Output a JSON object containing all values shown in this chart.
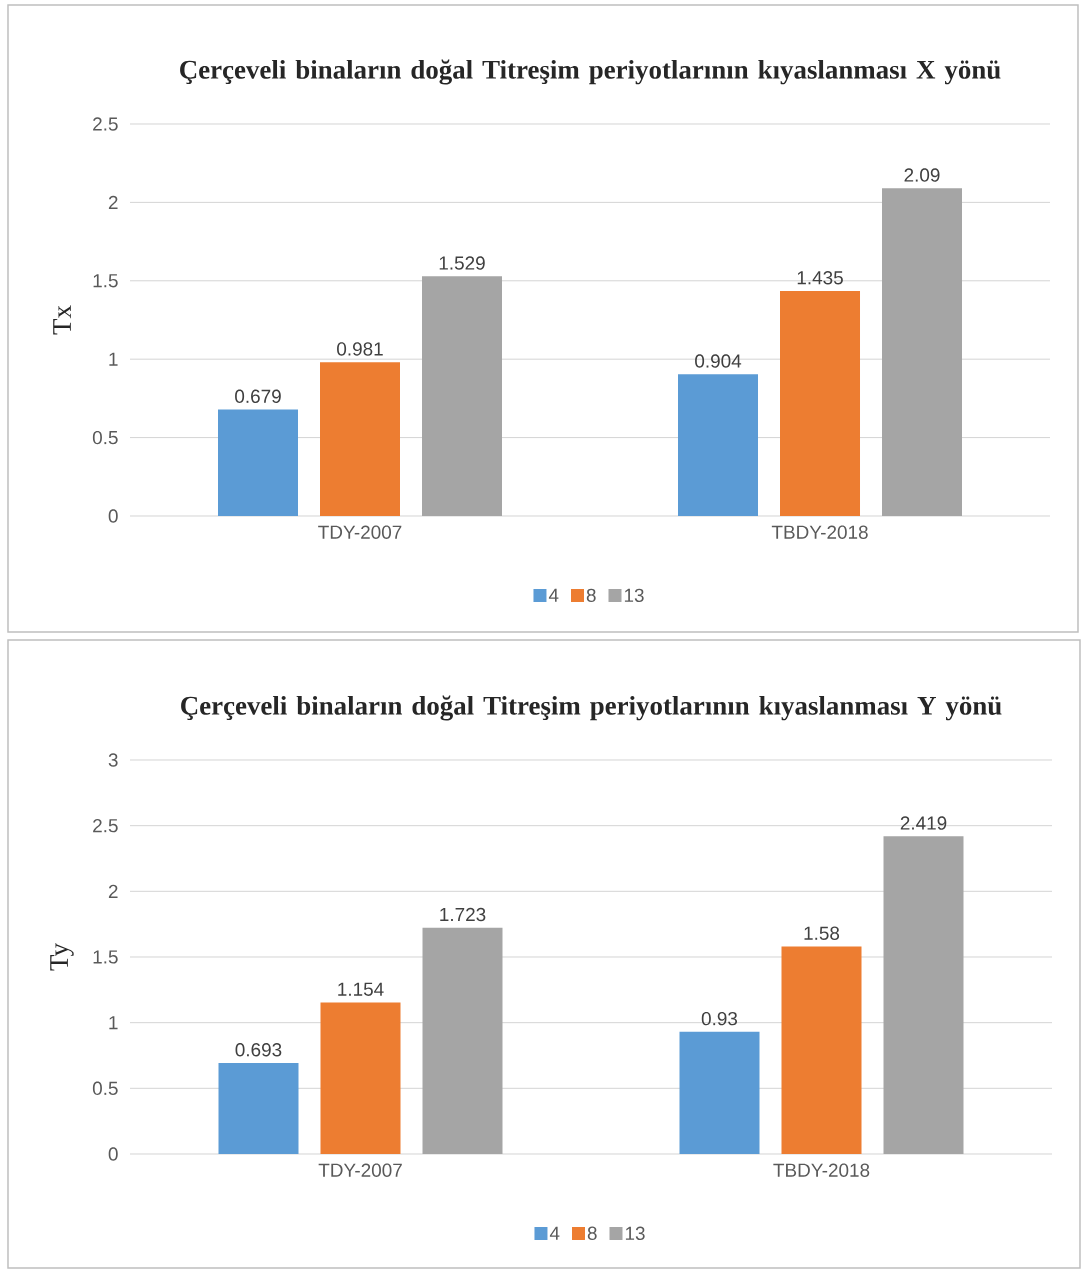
{
  "chart_data": [
    {
      "type": "bar",
      "title": "Çerçeveli binaların doğal Titreşim periyotlarının kıyaslanması X yönü",
      "ylabel": "Tx",
      "categories": [
        "TDY-2007",
        "TBDY-2018"
      ],
      "series": [
        {
          "name": "4",
          "color": "#5b9bd5",
          "values": [
            0.679,
            0.904
          ]
        },
        {
          "name": "8",
          "color": "#ed7d31",
          "values": [
            0.981,
            1.435
          ]
        },
        {
          "name": "13",
          "color": "#a5a5a5",
          "values": [
            1.529,
            2.09
          ]
        }
      ],
      "ylim": [
        0,
        2.5
      ],
      "yticks": [
        0,
        0.5,
        1,
        1.5,
        2,
        2.5
      ],
      "grid": "y",
      "legend": "bottom",
      "data_labels": true
    },
    {
      "type": "bar",
      "title": "Çerçeveli binaların doğal Titreşim periyotlarının kıyaslanması Y yönü",
      "ylabel": "Ty",
      "categories": [
        "TDY-2007",
        "TBDY-2018"
      ],
      "series": [
        {
          "name": "4",
          "color": "#5b9bd5",
          "values": [
            0.693,
            0.93
          ]
        },
        {
          "name": "8",
          "color": "#ed7d31",
          "values": [
            1.154,
            1.58
          ]
        },
        {
          "name": "13",
          "color": "#a5a5a5",
          "values": [
            1.723,
            2.419
          ]
        }
      ],
      "ylim": [
        0,
        3
      ],
      "yticks": [
        0,
        0.5,
        1,
        1.5,
        2,
        2.5,
        3
      ],
      "grid": "y",
      "legend": "bottom",
      "data_labels": true
    }
  ]
}
